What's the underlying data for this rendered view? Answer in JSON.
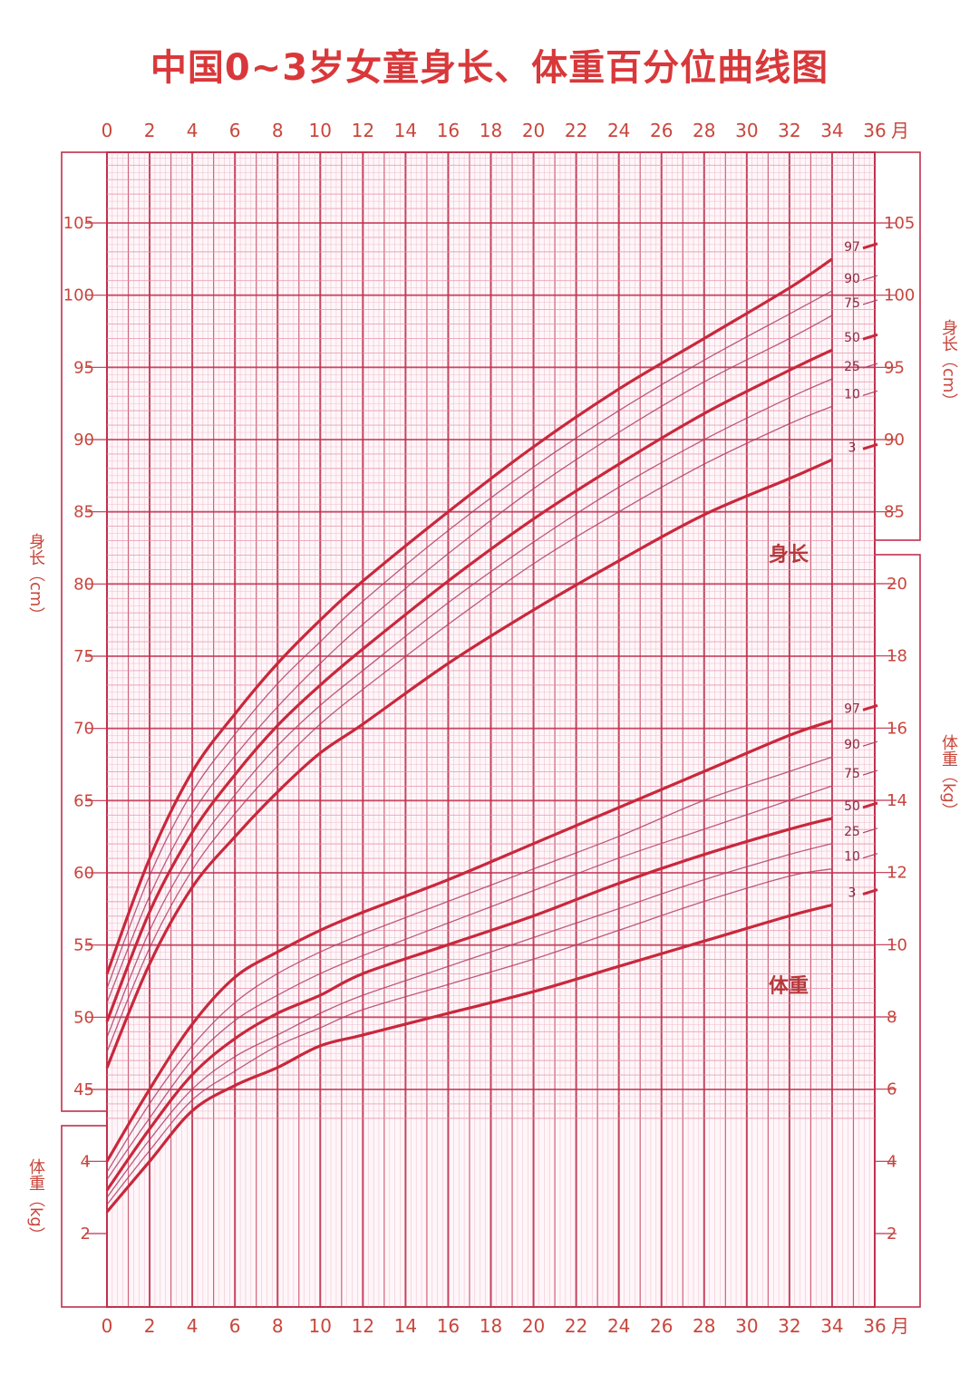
{
  "title": "中国0~3岁女童身长、体重百分位曲线图",
  "x_unit": "月",
  "left_length_label": "身长（cm）",
  "left_weight_label": "体重（kg）",
  "right_length_label": "身长（cm）",
  "right_weight_label": "体重（kg）",
  "length_curve_label": "身长",
  "weight_curve_label": "体重",
  "colors": {
    "grid": "#e090a8",
    "major": "#c0304e",
    "curve_main": "#c8283c",
    "curve_thin": "#b0406a",
    "label": "#c8463c"
  },
  "chart_data": {
    "type": "line",
    "title": "中国0~3岁女童身长、体重百分位曲线图",
    "x_ticks": [
      0,
      2,
      4,
      6,
      8,
      10,
      12,
      14,
      16,
      18,
      20,
      22,
      24,
      26,
      28,
      30,
      32,
      34,
      36
    ],
    "xlim": [
      0,
      36
    ],
    "grid": true,
    "length": {
      "ylabel": "身长（cm）",
      "ylim": [
        43,
        110
      ],
      "ticks_left": [
        45,
        50,
        55,
        60,
        65,
        70,
        75,
        80,
        85,
        90,
        95,
        100,
        105
      ],
      "ticks_right": [
        85,
        90,
        95,
        100,
        105
      ],
      "x": [
        0,
        2,
        4,
        6,
        8,
        10,
        12,
        16,
        20,
        24,
        28,
        32,
        34
      ],
      "series": [
        {
          "name": "97",
          "values": [
            53.0,
            61.0,
            67.0,
            71.0,
            74.5,
            77.5,
            80.2,
            85.0,
            89.5,
            93.5,
            97.0,
            100.5,
            102.5
          ]
        },
        {
          "name": "90",
          "values": [
            52.0,
            59.8,
            65.6,
            69.6,
            73.1,
            76.0,
            78.8,
            83.7,
            88.1,
            92.0,
            95.5,
            98.7,
            100.3
          ]
        },
        {
          "name": "75",
          "values": [
            51.0,
            58.4,
            64.1,
            68.1,
            71.5,
            74.5,
            77.2,
            82.1,
            86.6,
            90.5,
            94.0,
            97.0,
            98.6
          ]
        },
        {
          "name": "50",
          "values": [
            49.7,
            57.3,
            62.8,
            66.8,
            70.2,
            73.0,
            75.5,
            80.2,
            84.5,
            88.3,
            91.8,
            94.8,
            96.2
          ]
        },
        {
          "name": "25",
          "values": [
            48.6,
            56.0,
            61.4,
            65.4,
            68.8,
            71.6,
            74.0,
            78.7,
            82.9,
            86.7,
            90.0,
            92.9,
            94.2
          ]
        },
        {
          "name": "10",
          "values": [
            47.6,
            54.8,
            60.2,
            64.1,
            67.4,
            70.3,
            72.7,
            77.2,
            81.4,
            85.0,
            88.3,
            91.1,
            92.3
          ]
        },
        {
          "name": "3",
          "values": [
            46.5,
            53.7,
            59.0,
            62.5,
            65.6,
            68.3,
            70.3,
            74.5,
            78.2,
            81.6,
            84.8,
            87.3,
            88.6
          ]
        }
      ]
    },
    "weight": {
      "ylabel": "体重（kg）",
      "ylim_left": [
        1,
        5
      ],
      "ticks_left": [
        2,
        4
      ],
      "ylim_right": [
        1,
        21
      ],
      "ticks_right": [
        2,
        4,
        6,
        8,
        10,
        12,
        14,
        16,
        18,
        20
      ],
      "x": [
        0,
        2,
        4,
        6,
        8,
        10,
        12,
        16,
        20,
        24,
        28,
        32,
        34
      ],
      "series": [
        {
          "name": "97",
          "values": [
            4.0,
            6.0,
            7.8,
            9.1,
            9.8,
            10.4,
            10.9,
            11.8,
            12.8,
            13.8,
            14.8,
            15.8,
            16.2
          ]
        },
        {
          "name": "90",
          "values": [
            3.7,
            5.6,
            7.2,
            8.4,
            9.2,
            9.8,
            10.3,
            11.2,
            12.1,
            13.0,
            14.0,
            14.8,
            15.2
          ]
        },
        {
          "name": "75",
          "values": [
            3.5,
            5.2,
            6.8,
            7.9,
            8.6,
            9.2,
            9.7,
            10.6,
            11.5,
            12.4,
            13.2,
            14.0,
            14.4
          ]
        },
        {
          "name": "50",
          "values": [
            3.2,
            4.9,
            6.4,
            7.4,
            8.1,
            8.6,
            9.2,
            10.0,
            10.8,
            11.7,
            12.5,
            13.2,
            13.5
          ]
        },
        {
          "name": "25",
          "values": [
            3.0,
            4.6,
            6.0,
            6.9,
            7.5,
            8.1,
            8.6,
            9.4,
            10.2,
            11.0,
            11.8,
            12.5,
            12.8
          ]
        },
        {
          "name": "10",
          "values": [
            2.8,
            4.3,
            5.7,
            6.5,
            7.2,
            7.7,
            8.2,
            8.9,
            9.6,
            10.4,
            11.2,
            11.9,
            12.1
          ]
        },
        {
          "name": "3",
          "values": [
            2.6,
            4.0,
            5.4,
            6.1,
            6.6,
            7.2,
            7.5,
            8.1,
            8.7,
            9.4,
            10.1,
            10.8,
            11.1
          ]
        }
      ]
    }
  }
}
